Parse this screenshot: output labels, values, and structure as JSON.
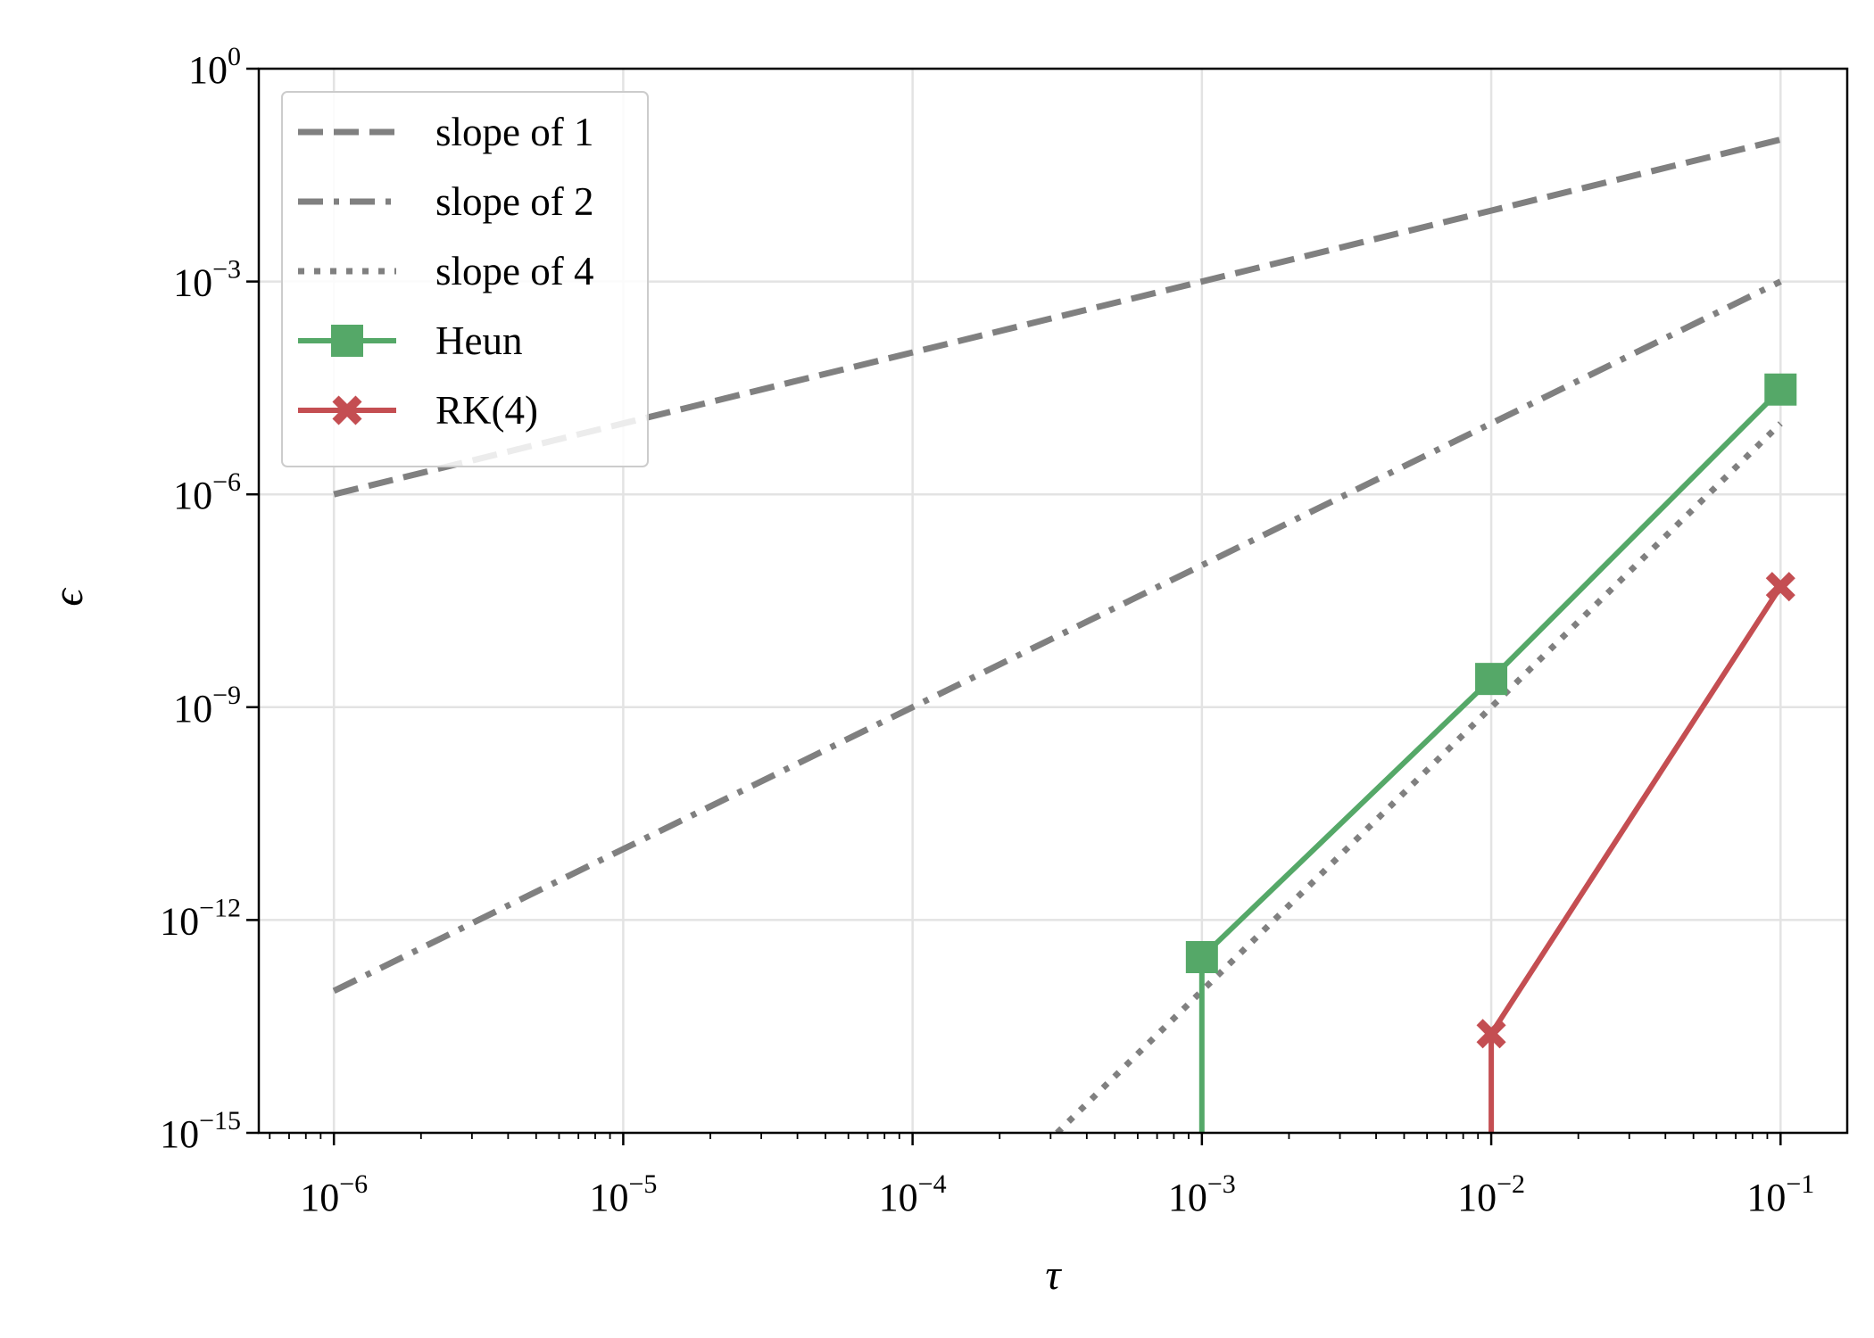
{
  "chart_data": {
    "type": "line",
    "title": "",
    "xlabel": "τ",
    "ylabel": "ϵ",
    "xscale": "log",
    "yscale": "log",
    "xlim": [
      5.5e-07,
      0.17
    ],
    "ylim": [
      1e-15,
      1
    ],
    "grid": true,
    "legend_position": "top-left",
    "x_ticks": [
      {
        "base": "10",
        "exp": "−6",
        "value": 1e-06
      },
      {
        "base": "10",
        "exp": "−5",
        "value": 1e-05
      },
      {
        "base": "10",
        "exp": "−4",
        "value": 0.0001
      },
      {
        "base": "10",
        "exp": "−3",
        "value": 0.001
      },
      {
        "base": "10",
        "exp": "−2",
        "value": 0.01
      },
      {
        "base": "10",
        "exp": "−1",
        "value": 0.1
      }
    ],
    "y_ticks": [
      {
        "base": "10",
        "exp": "0",
        "value": 1
      },
      {
        "base": "10",
        "exp": "−3",
        "value": 0.001
      },
      {
        "base": "10",
        "exp": "−6",
        "value": 1e-06
      },
      {
        "base": "10",
        "exp": "−9",
        "value": 1e-09
      },
      {
        "base": "10",
        "exp": "−12",
        "value": 1e-12
      },
      {
        "base": "10",
        "exp": "−15",
        "value": 1e-15
      }
    ],
    "series": [
      {
        "name": "slope of 1",
        "color": "#808080",
        "style": "dashed",
        "marker": "none",
        "x": [
          1e-06,
          1e-05,
          0.0001,
          0.001,
          0.01,
          0.1
        ],
        "y": [
          1e-06,
          1e-05,
          0.0001,
          0.001,
          0.01,
          0.1
        ]
      },
      {
        "name": "slope of 2",
        "color": "#808080",
        "style": "dashdot",
        "marker": "none",
        "x": [
          1e-06,
          1e-05,
          0.0001,
          0.001,
          0.01,
          0.1
        ],
        "y": [
          1e-13,
          1e-11,
          1e-09,
          1e-07,
          1e-05,
          0.001
        ]
      },
      {
        "name": "slope of 4",
        "color": "#808080",
        "style": "dotted",
        "marker": "none",
        "x": [
          0.000316,
          0.001,
          0.01,
          0.1
        ],
        "y": [
          1e-15,
          1e-13,
          1e-09,
          1e-05
        ]
      },
      {
        "name": "Heun",
        "color": "#55a868",
        "style": "solid",
        "marker": "square",
        "x": [
          0.001,
          0.01,
          0.1
        ],
        "y": [
          3e-13,
          2.5e-09,
          3e-05
        ],
        "drop_to_floor_at": 0.001
      },
      {
        "name": "RK(4)",
        "color": "#c44e52",
        "style": "solid",
        "marker": "x",
        "x": [
          0.01,
          0.1
        ],
        "y": [
          2.5e-14,
          5e-08
        ],
        "drop_to_floor_at": 0.01
      }
    ]
  }
}
